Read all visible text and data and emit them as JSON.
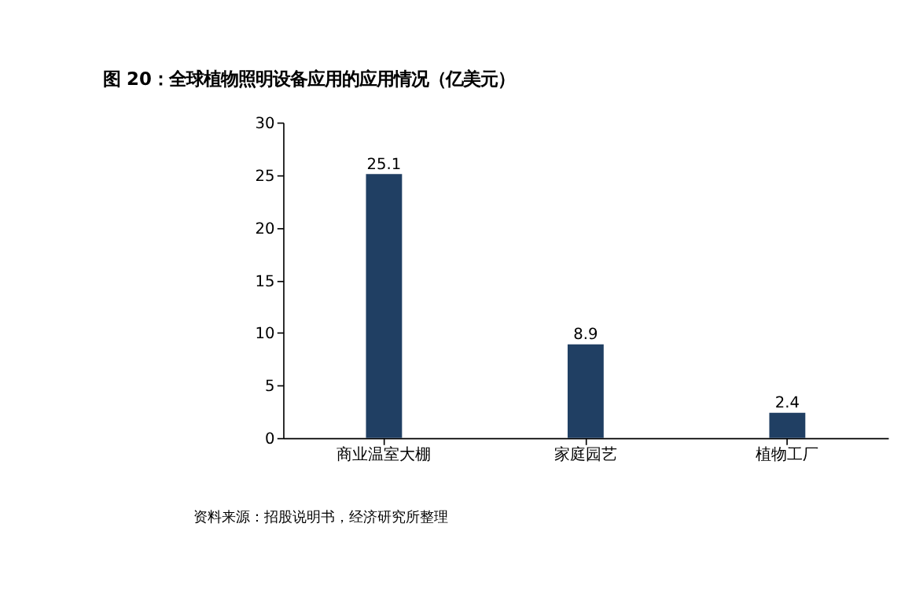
{
  "chart_data": {
    "type": "bar",
    "title": "图 20：全球植物照明设备应用的应用情况（亿美元）",
    "categories": [
      "商业温室大棚",
      "家庭园艺",
      "植物工厂"
    ],
    "values": [
      25.1,
      8.9,
      2.4
    ],
    "color": "#203f63",
    "ylim": [
      0,
      30
    ],
    "yticks": [
      0,
      5,
      10,
      15,
      20,
      25,
      30
    ],
    "grid": false,
    "data_labels": true,
    "annotations": [
      "资料来源：招股说明书，经济研究所整理"
    ]
  }
}
